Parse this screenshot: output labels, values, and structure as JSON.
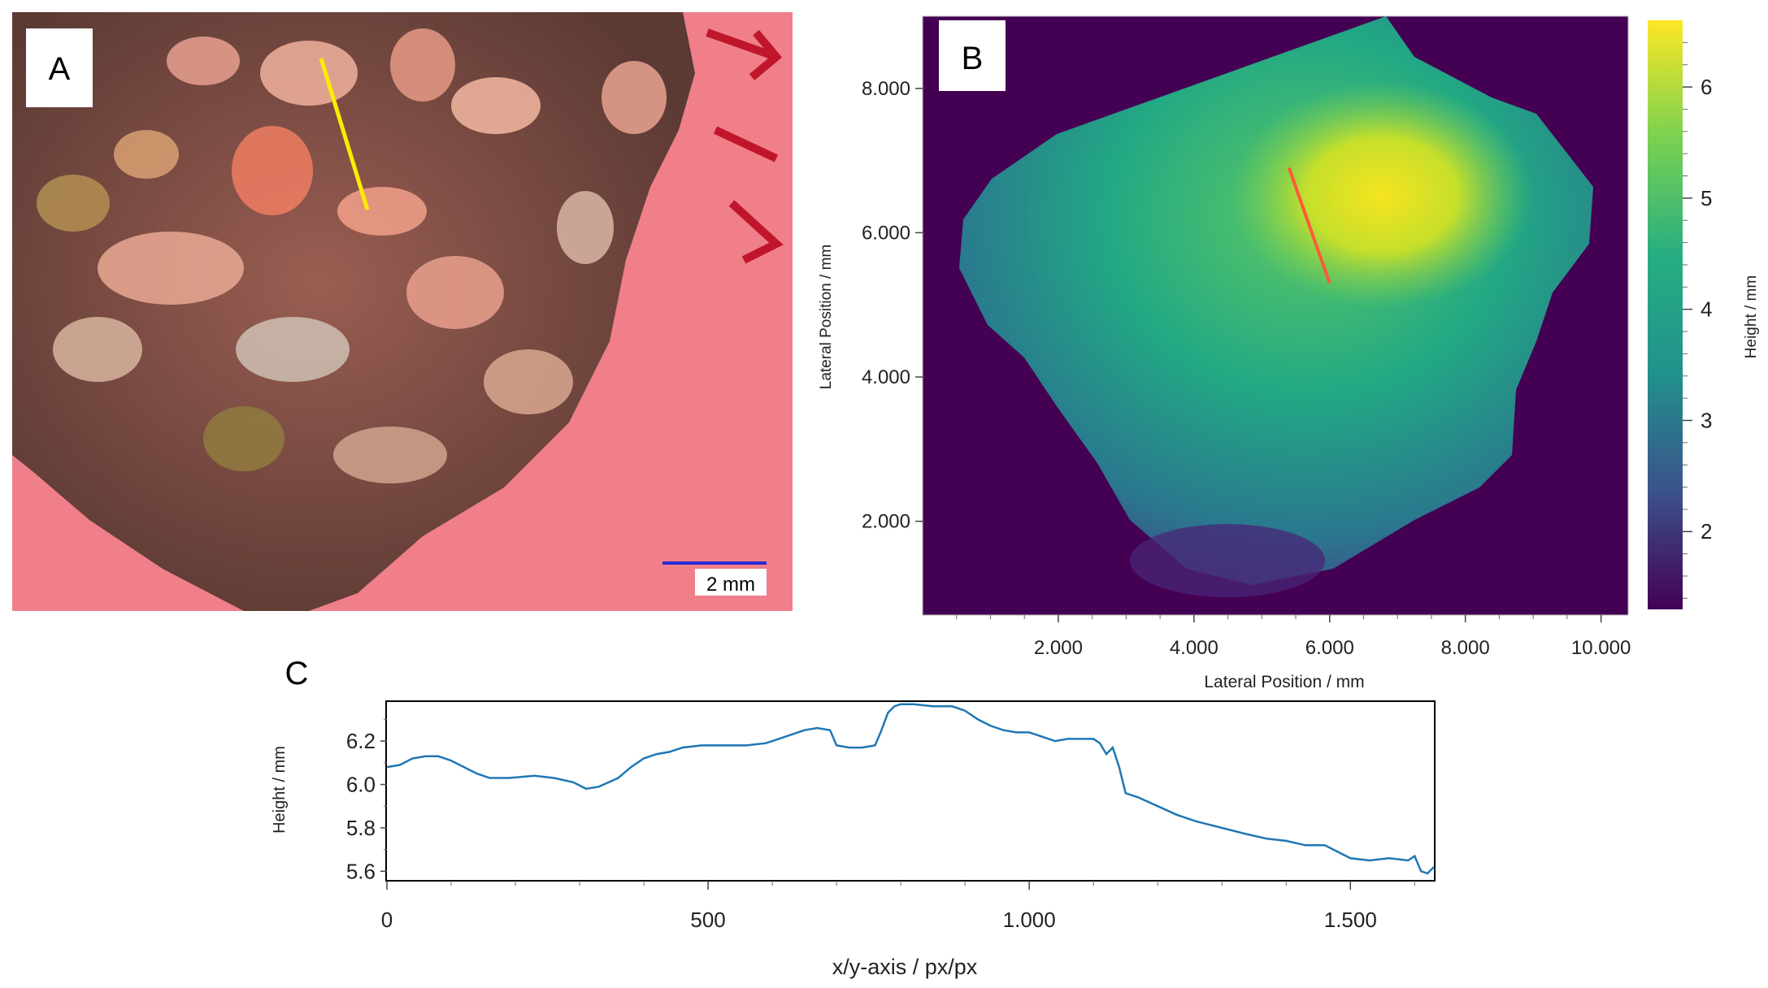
{
  "panels": {
    "a": {
      "label": "A",
      "scale_bar_label": "2 mm",
      "profile_line_color": "#ffeb00",
      "scale_bar_color": "#2b2bd6"
    },
    "b": {
      "label": "B",
      "profile_line_color": "#ff5a36"
    },
    "c": {
      "label": "C"
    }
  },
  "chart_data": [
    {
      "type": "heatmap",
      "panel": "B",
      "xlabel": "Lateral Position / mm",
      "ylabel": "Lateral Position / mm",
      "x_ticks": [
        "2.000",
        "4.000",
        "6.000",
        "8.000",
        "10.000"
      ],
      "x_tick_values": [
        2,
        4,
        6,
        8,
        10
      ],
      "y_ticks": [
        "2.000",
        "4.000",
        "6.000",
        "8.000"
      ],
      "y_tick_values": [
        2,
        4,
        6,
        8
      ],
      "xlim": [
        0,
        10.4
      ],
      "ylim": [
        0.7,
        9.0
      ],
      "colorbar": {
        "label": "Height / mm",
        "ticks": [
          "2",
          "3",
          "4",
          "5",
          "6"
        ],
        "tick_values": [
          2,
          3,
          4,
          5,
          6
        ],
        "range": [
          1.3,
          6.6
        ],
        "colormap": "viridis"
      },
      "profile_line": {
        "x": [
          5.4,
          6.0
        ],
        "y": [
          6.9,
          5.3
        ]
      }
    },
    {
      "type": "line",
      "panel": "C",
      "xlabel": "x/y-axis / px/px",
      "ylabel": "Height / mm",
      "x_ticks": [
        "0",
        "500",
        "1.000",
        "1.500"
      ],
      "x_tick_values": [
        0,
        500,
        1000,
        1500
      ],
      "y_ticks": [
        "5.6",
        "5.8",
        "6.0",
        "6.2"
      ],
      "y_tick_values": [
        5.6,
        5.8,
        6.0,
        6.2
      ],
      "xlim": [
        0,
        1630
      ],
      "ylim": [
        5.56,
        6.38
      ],
      "series": [
        {
          "color": "#1f77b4",
          "x": [
            0,
            20,
            40,
            60,
            80,
            100,
            120,
            140,
            160,
            190,
            230,
            260,
            290,
            310,
            330,
            360,
            380,
            400,
            420,
            440,
            460,
            490,
            520,
            560,
            590,
            610,
            630,
            650,
            670,
            690,
            700,
            720,
            740,
            760,
            770,
            780,
            790,
            800,
            820,
            850,
            880,
            900,
            920,
            940,
            960,
            980,
            1000,
            1020,
            1040,
            1060,
            1080,
            1100,
            1110,
            1120,
            1130,
            1140,
            1150,
            1170,
            1200,
            1230,
            1260,
            1300,
            1340,
            1370,
            1400,
            1430,
            1460,
            1480,
            1500,
            1530,
            1560,
            1590,
            1600,
            1610,
            1620,
            1630
          ],
          "y": [
            6.08,
            6.09,
            6.12,
            6.13,
            6.13,
            6.11,
            6.08,
            6.05,
            6.03,
            6.03,
            6.04,
            6.03,
            6.01,
            5.98,
            5.99,
            6.03,
            6.08,
            6.12,
            6.14,
            6.15,
            6.17,
            6.18,
            6.18,
            6.18,
            6.19,
            6.21,
            6.23,
            6.25,
            6.26,
            6.25,
            6.18,
            6.17,
            6.17,
            6.18,
            6.25,
            6.33,
            6.36,
            6.37,
            6.37,
            6.36,
            6.36,
            6.34,
            6.3,
            6.27,
            6.25,
            6.24,
            6.24,
            6.22,
            6.2,
            6.21,
            6.21,
            6.21,
            6.19,
            6.14,
            6.17,
            6.08,
            5.96,
            5.94,
            5.9,
            5.86,
            5.83,
            5.8,
            5.77,
            5.75,
            5.74,
            5.72,
            5.72,
            5.69,
            5.66,
            5.65,
            5.66,
            5.65,
            5.67,
            5.6,
            5.59,
            5.62
          ]
        }
      ]
    }
  ]
}
